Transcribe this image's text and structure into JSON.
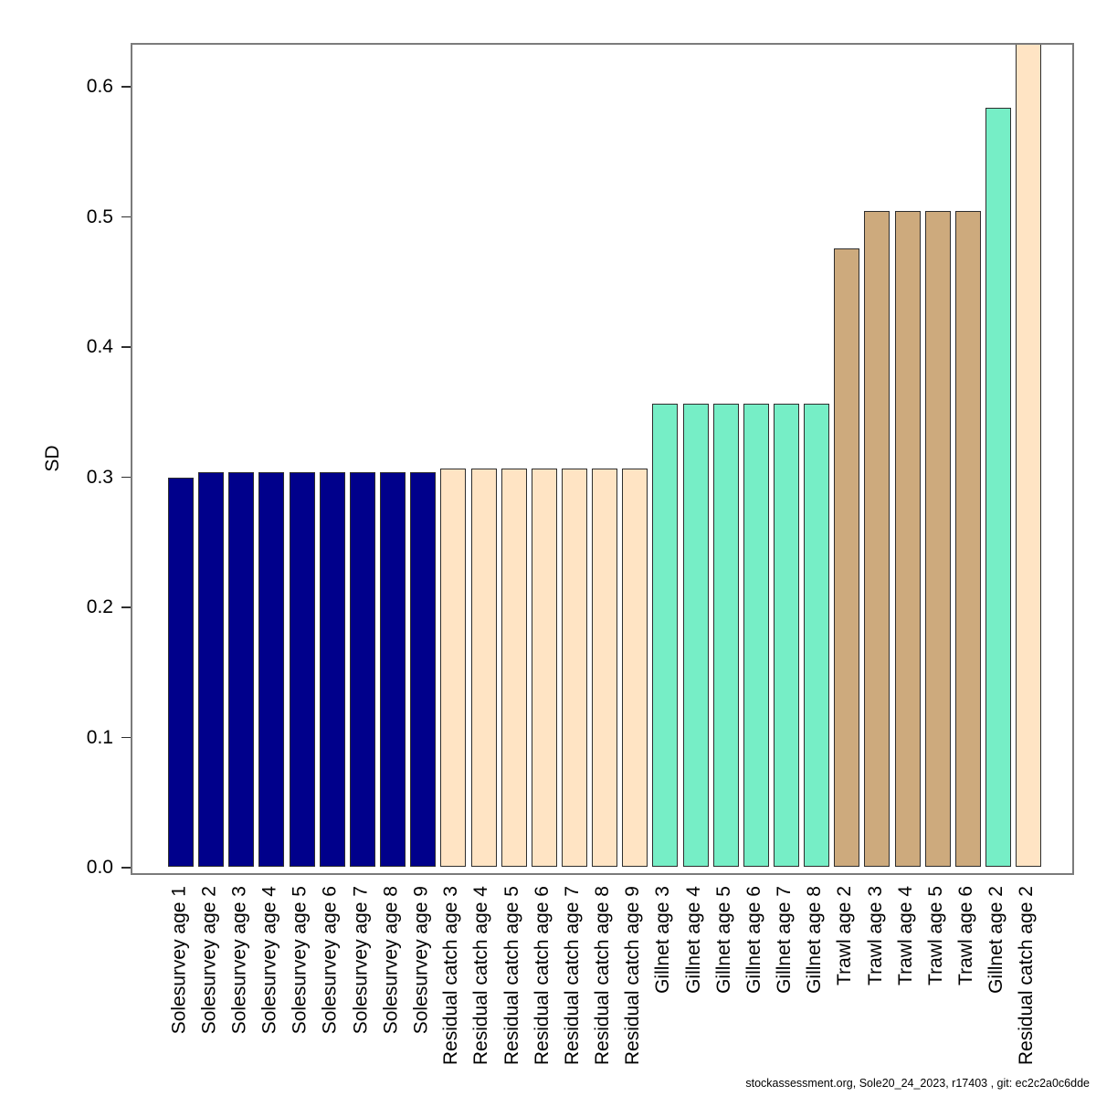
{
  "page": {
    "background": "#ffffff"
  },
  "footer": {
    "text": "stockassessment.org, Sole20_24_2023, r17403 , git: ec2c2a0c6dde"
  },
  "chart_data": {
    "type": "bar",
    "title": "",
    "xlabel": "",
    "ylabel": "SD",
    "ylim": [
      0.0,
      0.634
    ],
    "yticks": [
      "0.0",
      "0.1",
      "0.2",
      "0.3",
      "0.4",
      "0.5",
      "0.6"
    ],
    "grid": false,
    "legend": "none",
    "frame_color": "#7b7b7b",
    "bar_border_color": "#2e2e2e",
    "groups": [
      {
        "name": "Solesurvey",
        "color": "#00008B"
      },
      {
        "name": "Residual catch",
        "color": "#FFE4C4"
      },
      {
        "name": "Gillnet",
        "color": "#76EEC6"
      },
      {
        "name": "Trawl",
        "color": "#CDAA7D"
      }
    ],
    "note": "Last bar (Residual catch age 2) is clipped at the upper axis limit",
    "bars": [
      {
        "label": "Solesurvey age 1",
        "group": "Solesurvey",
        "value": 0.299
      },
      {
        "label": "Solesurvey age 2",
        "group": "Solesurvey",
        "value": 0.303
      },
      {
        "label": "Solesurvey age 3",
        "group": "Solesurvey",
        "value": 0.303
      },
      {
        "label": "Solesurvey age 4",
        "group": "Solesurvey",
        "value": 0.303
      },
      {
        "label": "Solesurvey age 5",
        "group": "Solesurvey",
        "value": 0.303
      },
      {
        "label": "Solesurvey age 6",
        "group": "Solesurvey",
        "value": 0.303
      },
      {
        "label": "Solesurvey age 7",
        "group": "Solesurvey",
        "value": 0.303
      },
      {
        "label": "Solesurvey age 8",
        "group": "Solesurvey",
        "value": 0.303
      },
      {
        "label": "Solesurvey age 9",
        "group": "Solesurvey",
        "value": 0.303
      },
      {
        "label": "Residual catch age 3",
        "group": "Residual catch",
        "value": 0.306
      },
      {
        "label": "Residual catch age 4",
        "group": "Residual catch",
        "value": 0.306
      },
      {
        "label": "Residual catch age 5",
        "group": "Residual catch",
        "value": 0.306
      },
      {
        "label": "Residual catch age 6",
        "group": "Residual catch",
        "value": 0.306
      },
      {
        "label": "Residual catch age 7",
        "group": "Residual catch",
        "value": 0.306
      },
      {
        "label": "Residual catch age 8",
        "group": "Residual catch",
        "value": 0.306
      },
      {
        "label": "Residual catch age 9",
        "group": "Residual catch",
        "value": 0.306
      },
      {
        "label": "Gillnet age 3",
        "group": "Gillnet",
        "value": 0.356
      },
      {
        "label": "Gillnet age 4",
        "group": "Gillnet",
        "value": 0.356
      },
      {
        "label": "Gillnet age 5",
        "group": "Gillnet",
        "value": 0.356
      },
      {
        "label": "Gillnet age 6",
        "group": "Gillnet",
        "value": 0.356
      },
      {
        "label": "Gillnet age 7",
        "group": "Gillnet",
        "value": 0.356
      },
      {
        "label": "Gillnet age 8",
        "group": "Gillnet",
        "value": 0.356
      },
      {
        "label": "Trawl age 2",
        "group": "Trawl",
        "value": 0.475
      },
      {
        "label": "Trawl age 3",
        "group": "Trawl",
        "value": 0.504
      },
      {
        "label": "Trawl age 4",
        "group": "Trawl",
        "value": 0.504
      },
      {
        "label": "Trawl age 5",
        "group": "Trawl",
        "value": 0.504
      },
      {
        "label": "Trawl age 6",
        "group": "Trawl",
        "value": 0.504
      },
      {
        "label": "Gillnet age 2",
        "group": "Gillnet",
        "value": 0.583
      },
      {
        "label": "Residual catch age 2",
        "group": "Residual catch",
        "value": 0.634
      }
    ]
  }
}
